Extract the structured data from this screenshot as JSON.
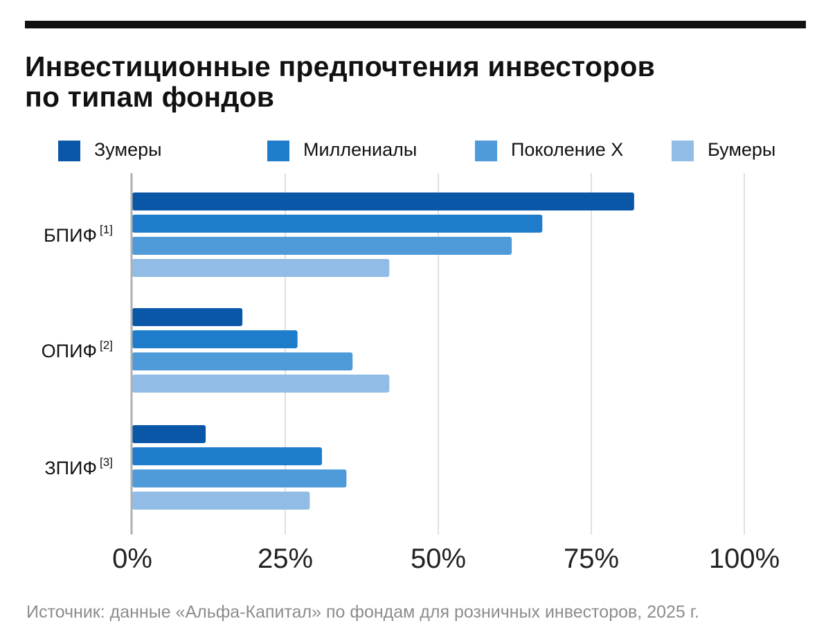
{
  "title_line1": "Инвестиционные предпочтения инвесторов",
  "title_line2": "по типам фондов",
  "source": "Источник: данные «Альфа-Капитал» по фондам для розничных инвесторов, 2025 г.",
  "colors": {
    "zoomers": "#0a57a8",
    "millennials": "#1f7ccb",
    "genx": "#4f9ad8",
    "boomers": "#90bce6",
    "grid": "#d6d6d6",
    "axis": "#b0b0b0"
  },
  "chart_data": {
    "type": "bar",
    "orientation": "horizontal",
    "categories": [
      "БПИФ",
      "ОПИФ",
      "ЗПИФ"
    ],
    "category_notes": [
      "[1]",
      "[2]",
      "[3]"
    ],
    "series": [
      {
        "name": "Зумеры",
        "values": [
          82,
          18,
          12
        ]
      },
      {
        "name": "Миллениалы",
        "values": [
          67,
          27,
          31
        ]
      },
      {
        "name": "Поколение X",
        "values": [
          62,
          36,
          35
        ]
      },
      {
        "name": "Бумеры",
        "values": [
          42,
          42,
          29
        ]
      }
    ],
    "xlim": [
      0,
      100
    ],
    "xticks": [
      "0%",
      "25%",
      "50%",
      "75%",
      "100%"
    ],
    "grid": true,
    "legend_position": "top"
  }
}
